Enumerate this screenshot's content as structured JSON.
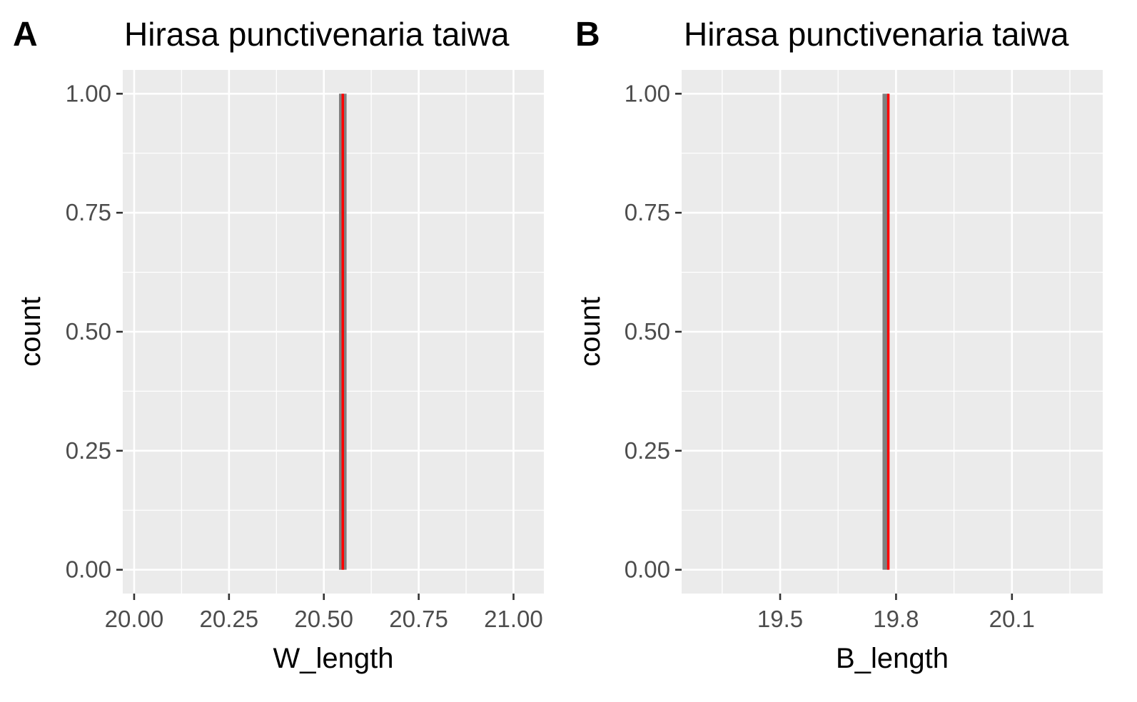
{
  "figure": {
    "panels": [
      {
        "letter": "A",
        "title": "Hirasa punctivenaria taiwa"
      },
      {
        "letter": "B",
        "title": "Hirasa punctivenaria taiwa"
      }
    ]
  },
  "chart_data": [
    {
      "type": "bar",
      "subtype": "histogram",
      "panel": "A",
      "title": "Hirasa punctivenaria taiwa",
      "xlabel": "W_length",
      "ylabel": "count",
      "xlim": [
        19.97,
        21.08
      ],
      "ylim": [
        -0.05,
        1.05
      ],
      "x_ticks": [
        20.0,
        20.25,
        20.5,
        20.75,
        21.0
      ],
      "x_tick_labels": [
        "20.00",
        "20.25",
        "20.50",
        "20.75",
        "21.00"
      ],
      "x_minor_ticks": [
        20.125,
        20.375,
        20.625,
        20.875
      ],
      "y_ticks": [
        0,
        0.25,
        0.5,
        0.75,
        1.0
      ],
      "y_tick_labels": [
        "0.00",
        "0.25",
        "0.50",
        "0.75",
        "1.00"
      ],
      "y_minor_ticks": [
        0.125,
        0.375,
        0.625,
        0.875
      ],
      "bins": [
        {
          "x_start": 20.54,
          "x_end": 20.56,
          "count": 1
        }
      ],
      "mean_line": {
        "x": 20.55,
        "color": "#ff0000"
      },
      "bar_color": "#7f7f7f",
      "panel_bg": "#ebebeb",
      "grid": true,
      "legend": "none"
    },
    {
      "type": "bar",
      "subtype": "histogram",
      "panel": "B",
      "title": "Hirasa punctivenaria taiwa",
      "xlabel": "B_length",
      "ylabel": "count",
      "xlim": [
        19.245,
        20.335
      ],
      "ylim": [
        -0.05,
        1.05
      ],
      "x_ticks": [
        19.5,
        19.8,
        20.1
      ],
      "x_tick_labels": [
        "19.5",
        "19.8",
        "20.1"
      ],
      "x_minor_ticks": [
        19.35,
        19.65,
        19.95,
        20.25
      ],
      "y_ticks": [
        0,
        0.25,
        0.5,
        0.75,
        1.0
      ],
      "y_tick_labels": [
        "0.00",
        "0.25",
        "0.50",
        "0.75",
        "1.00"
      ],
      "y_minor_ticks": [
        0.125,
        0.375,
        0.625,
        0.875
      ],
      "bins": [
        {
          "x_start": 19.765,
          "x_end": 19.78,
          "count": 1
        }
      ],
      "mean_line": {
        "x": 19.78,
        "color": "#ff0000"
      },
      "bar_color": "#7f7f7f",
      "panel_bg": "#ebebeb",
      "grid": true,
      "legend": "none"
    }
  ]
}
